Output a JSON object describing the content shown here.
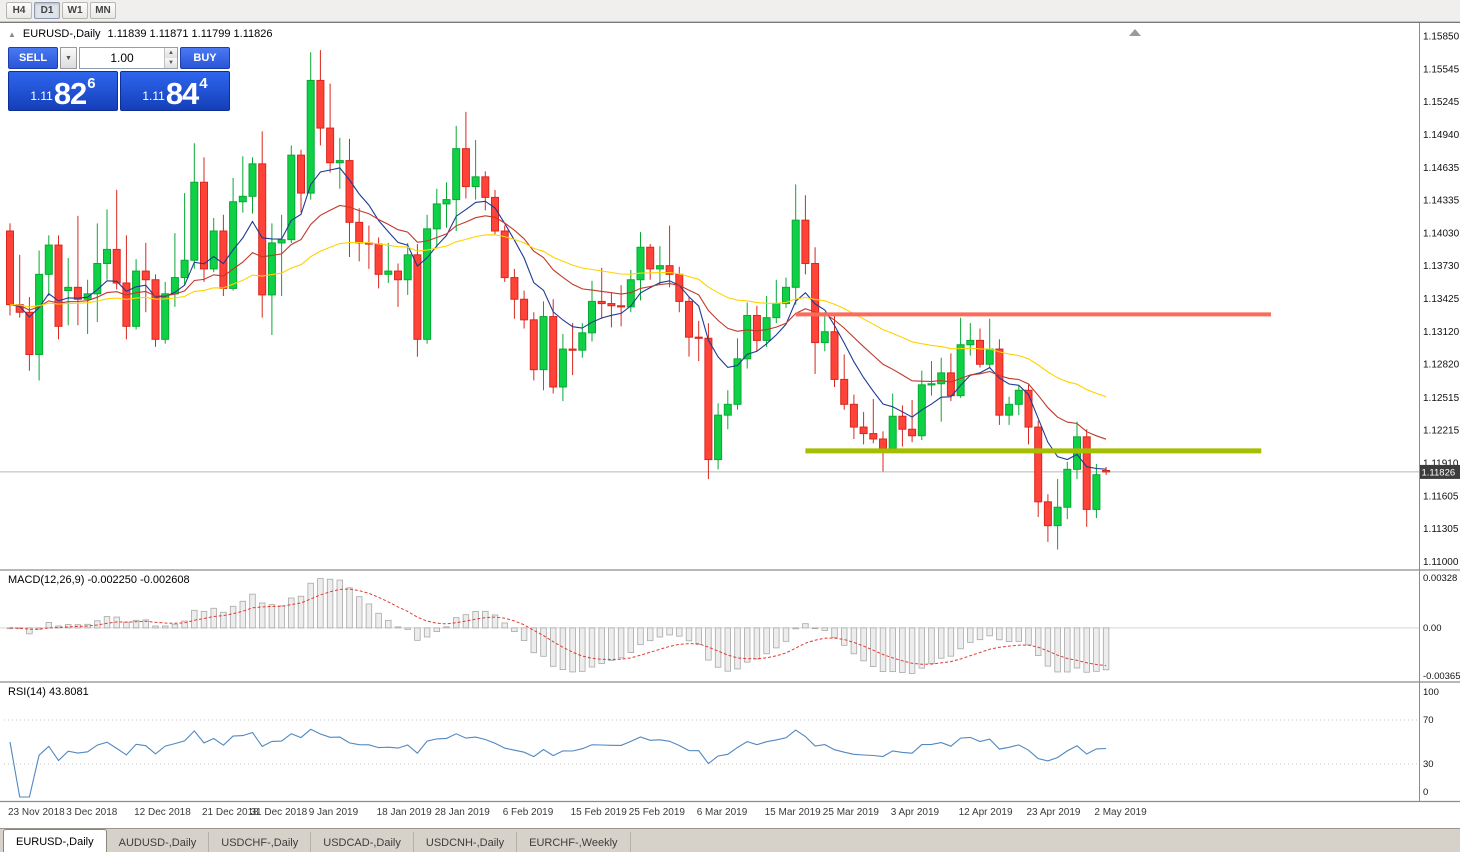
{
  "toolbar": {
    "buttons": [
      {
        "label": "H4",
        "active": false
      },
      {
        "label": "D1",
        "active": true
      },
      {
        "label": "W1",
        "active": false
      },
      {
        "label": "MN",
        "active": false
      }
    ]
  },
  "icons": {
    "collapse_panel": "▲",
    "volume_dropdown": "▼",
    "spin_up": "▲",
    "spin_down": "▼"
  },
  "chart": {
    "title": "EURUSD-,Daily",
    "ohlc": "1.11839 1.11871 1.11799 1.11826",
    "current_price": "1.11826",
    "price_scale": [
      "1.15850",
      "1.15545",
      "1.15245",
      "1.14940",
      "1.14635",
      "1.14335",
      "1.14030",
      "1.13730",
      "1.13425",
      "1.13120",
      "1.12820",
      "1.12515",
      "1.12215",
      "1.11910",
      "1.11605",
      "1.11305",
      "1.11000"
    ]
  },
  "trade_panel": {
    "sell_label": "SELL",
    "buy_label": "BUY",
    "volume": "1.00",
    "sell_price": {
      "prefix": "1.11",
      "big": "82",
      "sup": "6"
    },
    "buy_price": {
      "prefix": "1.11",
      "big": "84",
      "sup": "4"
    }
  },
  "macd": {
    "label": "MACD(12,26,9)",
    "values": "-0.002250 -0.002608",
    "fast": 12,
    "slow": 26,
    "signal": 9,
    "scale_top": "0.00328",
    "scale_mid": "0.00",
    "scale_bottom": "-0.00365",
    "histogram_fill": "#ededed",
    "histogram_border": "#a8a8a8",
    "signal_color": "#e23b32"
  },
  "rsi": {
    "label": "RSI(14)",
    "value": "43.8081",
    "period": 14,
    "levels": [
      100,
      70,
      30,
      0
    ],
    "line_color": "#5188c0"
  },
  "tabs": {
    "items": [
      {
        "label": "EURUSD-,Daily",
        "active": true
      },
      {
        "label": "AUDUSD-,Daily",
        "active": false
      },
      {
        "label": "USDCHF-,Daily",
        "active": false
      },
      {
        "label": "USDCAD-,Daily",
        "active": false
      },
      {
        "label": "USDCNH-,Daily",
        "active": false
      },
      {
        "label": "EURCHF-,Weekly",
        "active": false
      }
    ]
  },
  "chart_data": {
    "type": "candlestick",
    "symbol": "EURUSD-",
    "timeframe": "Daily",
    "bid": 1.11826,
    "colors": {
      "bull": "#0ed145",
      "bull_border": "#09a835",
      "bear": "#ff4338",
      "bear_border": "#d8271e",
      "bid_line": "#b8b8b8",
      "badge_bg": "#3c3c3c"
    },
    "moving_averages": [
      {
        "name": "fast-ma-line",
        "period": 8,
        "color": "#1f3a93"
      },
      {
        "name": "mid-ma-line",
        "period": 20,
        "color": "#c0392b"
      },
      {
        "name": "slow-ma-line",
        "period": 45,
        "color": "#ffd200"
      }
    ],
    "hlines": [
      {
        "name": "resistance-line",
        "price": 1.1328,
        "color": "#fb6a5a",
        "width": 4,
        "from_index": 81,
        "to_index": 130
      },
      {
        "name": "support-line",
        "price": 1.1202,
        "color": "#a6be00",
        "width": 5,
        "from_index": 82,
        "to_index": 129
      }
    ],
    "date_labels": [
      {
        "label": "23 Nov 2018",
        "index": 0
      },
      {
        "label": "3 Dec 2018",
        "index": 6
      },
      {
        "label": "12 Dec 2018",
        "index": 13
      },
      {
        "label": "21 Dec 2018",
        "index": 20
      },
      {
        "label": "31 Dec 2018",
        "index": 25
      },
      {
        "label": "9 Jan 2019",
        "index": 31
      },
      {
        "label": "18 Jan 2019",
        "index": 38
      },
      {
        "label": "28 Jan 2019",
        "index": 44
      },
      {
        "label": "6 Feb 2019",
        "index": 51
      },
      {
        "label": "15 Feb 2019",
        "index": 58
      },
      {
        "label": "25 Feb 2019",
        "index": 64
      },
      {
        "label": "6 Mar 2019",
        "index": 71
      },
      {
        "label": "15 Mar 2019",
        "index": 78
      },
      {
        "label": "25 Mar 2019",
        "index": 84
      },
      {
        "label": "3 Apr 2019",
        "index": 91
      },
      {
        "label": "12 Apr 2019",
        "index": 98
      },
      {
        "label": "23 Apr 2019",
        "index": 105
      },
      {
        "label": "2 May 2019",
        "index": 112
      }
    ],
    "candles": [
      [
        1.1405,
        1.1412,
        1.1327,
        1.1337
      ],
      [
        1.1337,
        1.1383,
        1.1325,
        1.133
      ],
      [
        1.133,
        1.1344,
        1.1276,
        1.1291
      ],
      [
        1.1291,
        1.1387,
        1.1267,
        1.1365
      ],
      [
        1.1365,
        1.1401,
        1.1345,
        1.1392
      ],
      [
        1.1392,
        1.1401,
        1.1305,
        1.1317
      ],
      [
        1.135,
        1.138,
        1.1318,
        1.1353
      ],
      [
        1.1353,
        1.1419,
        1.1318,
        1.1342
      ],
      [
        1.1342,
        1.136,
        1.131,
        1.1347
      ],
      [
        1.1347,
        1.1412,
        1.1321,
        1.1375
      ],
      [
        1.1375,
        1.1425,
        1.136,
        1.1388
      ],
      [
        1.1388,
        1.1443,
        1.1351,
        1.1357
      ],
      [
        1.1357,
        1.1401,
        1.1305,
        1.1317
      ],
      [
        1.1317,
        1.1379,
        1.1314,
        1.1368
      ],
      [
        1.1368,
        1.1394,
        1.133,
        1.136
      ],
      [
        1.136,
        1.1365,
        1.1298,
        1.1305
      ],
      [
        1.1305,
        1.1358,
        1.1301,
        1.1347
      ],
      [
        1.1347,
        1.1403,
        1.1335,
        1.1362
      ],
      [
        1.1362,
        1.144,
        1.1355,
        1.1378
      ],
      [
        1.1378,
        1.1486,
        1.137,
        1.145
      ],
      [
        1.145,
        1.1473,
        1.1358,
        1.137
      ],
      [
        1.137,
        1.1417,
        1.1367,
        1.1405
      ],
      [
        1.1405,
        1.142,
        1.1345,
        1.1352
      ],
      [
        1.1352,
        1.1454,
        1.135,
        1.1432
      ],
      [
        1.1432,
        1.1474,
        1.1422,
        1.1437
      ],
      [
        1.1437,
        1.1473,
        1.1421,
        1.1467
      ],
      [
        1.1467,
        1.1497,
        1.1325,
        1.1346
      ],
      [
        1.1346,
        1.1412,
        1.1309,
        1.1394
      ],
      [
        1.1394,
        1.142,
        1.1345,
        1.1397
      ],
      [
        1.1397,
        1.1484,
        1.1394,
        1.1475
      ],
      [
        1.1475,
        1.148,
        1.1422,
        1.144
      ],
      [
        1.144,
        1.157,
        1.1434,
        1.1544
      ],
      [
        1.1544,
        1.1572,
        1.1484,
        1.15
      ],
      [
        1.15,
        1.1541,
        1.1459,
        1.1468
      ],
      [
        1.1468,
        1.1491,
        1.1444,
        1.147
      ],
      [
        1.147,
        1.149,
        1.1381,
        1.1413
      ],
      [
        1.1413,
        1.1426,
        1.1377,
        1.1394
      ],
      [
        1.1394,
        1.141,
        1.137,
        1.1393
      ],
      [
        1.1393,
        1.1399,
        1.1352,
        1.1365
      ],
      [
        1.1365,
        1.1394,
        1.1357,
        1.1368
      ],
      [
        1.1368,
        1.1375,
        1.1335,
        1.136
      ],
      [
        1.136,
        1.1394,
        1.1346,
        1.1383
      ],
      [
        1.1383,
        1.1393,
        1.1289,
        1.1305
      ],
      [
        1.1305,
        1.142,
        1.1301,
        1.1407
      ],
      [
        1.1407,
        1.1444,
        1.139,
        1.143
      ],
      [
        1.143,
        1.145,
        1.1408,
        1.1434
      ],
      [
        1.1434,
        1.1502,
        1.1405,
        1.1481
      ],
      [
        1.1481,
        1.1515,
        1.1435,
        1.1446
      ],
      [
        1.1446,
        1.1489,
        1.1434,
        1.1455
      ],
      [
        1.1455,
        1.146,
        1.1424,
        1.1436
      ],
      [
        1.1436,
        1.1443,
        1.1402,
        1.1405
      ],
      [
        1.1405,
        1.141,
        1.1358,
        1.1362
      ],
      [
        1.1362,
        1.137,
        1.1324,
        1.1342
      ],
      [
        1.1342,
        1.135,
        1.1315,
        1.1323
      ],
      [
        1.1323,
        1.133,
        1.1267,
        1.1277
      ],
      [
        1.1277,
        1.134,
        1.1258,
        1.1326
      ],
      [
        1.1326,
        1.1342,
        1.1255,
        1.1261
      ],
      [
        1.1261,
        1.131,
        1.1248,
        1.1296
      ],
      [
        1.1296,
        1.132,
        1.1272,
        1.1295
      ],
      [
        1.1295,
        1.132,
        1.1288,
        1.1311
      ],
      [
        1.1311,
        1.1359,
        1.1303,
        1.134
      ],
      [
        1.134,
        1.1371,
        1.1324,
        1.1338
      ],
      [
        1.1338,
        1.1348,
        1.1316,
        1.1336
      ],
      [
        1.1336,
        1.1355,
        1.1317,
        1.1335
      ],
      [
        1.1335,
        1.1369,
        1.133,
        1.136
      ],
      [
        1.136,
        1.1404,
        1.1341,
        1.139
      ],
      [
        1.139,
        1.1393,
        1.136,
        1.137
      ],
      [
        1.137,
        1.1391,
        1.1355,
        1.1373
      ],
      [
        1.1373,
        1.141,
        1.1353,
        1.1365
      ],
      [
        1.1365,
        1.1372,
        1.133,
        1.134
      ],
      [
        1.134,
        1.1344,
        1.1289,
        1.1307
      ],
      [
        1.1307,
        1.1322,
        1.1285,
        1.1306
      ],
      [
        1.1306,
        1.132,
        1.1176,
        1.1194
      ],
      [
        1.1194,
        1.1246,
        1.1185,
        1.1235
      ],
      [
        1.1235,
        1.1258,
        1.1222,
        1.1245
      ],
      [
        1.1245,
        1.1306,
        1.124,
        1.1287
      ],
      [
        1.1287,
        1.1339,
        1.1278,
        1.1327
      ],
      [
        1.1327,
        1.1336,
        1.1294,
        1.1304
      ],
      [
        1.1304,
        1.1345,
        1.1298,
        1.1325
      ],
      [
        1.1325,
        1.136,
        1.132,
        1.1338
      ],
      [
        1.1338,
        1.1362,
        1.1334,
        1.1353
      ],
      [
        1.1353,
        1.1448,
        1.1337,
        1.1415
      ],
      [
        1.1415,
        1.1438,
        1.1365,
        1.1375
      ],
      [
        1.1375,
        1.139,
        1.1273,
        1.1302
      ],
      [
        1.1302,
        1.133,
        1.1294,
        1.1312
      ],
      [
        1.1312,
        1.1327,
        1.1261,
        1.1268
      ],
      [
        1.1268,
        1.1291,
        1.124,
        1.1245
      ],
      [
        1.1245,
        1.1254,
        1.1213,
        1.1224
      ],
      [
        1.1224,
        1.1238,
        1.1208,
        1.1218
      ],
      [
        1.1218,
        1.125,
        1.1209,
        1.1213
      ],
      [
        1.1213,
        1.122,
        1.1183,
        1.1204
      ],
      [
        1.1204,
        1.1255,
        1.12,
        1.1234
      ],
      [
        1.1234,
        1.1244,
        1.1206,
        1.1222
      ],
      [
        1.1222,
        1.1249,
        1.121,
        1.1216
      ],
      [
        1.1216,
        1.1276,
        1.1212,
        1.1263
      ],
      [
        1.1263,
        1.1285,
        1.1253,
        1.1264
      ],
      [
        1.1264,
        1.1288,
        1.1229,
        1.1274
      ],
      [
        1.1274,
        1.1292,
        1.1248,
        1.1253
      ],
      [
        1.1253,
        1.1325,
        1.1251,
        1.13
      ],
      [
        1.13,
        1.132,
        1.129,
        1.1304
      ],
      [
        1.1304,
        1.1315,
        1.1279,
        1.1282
      ],
      [
        1.1282,
        1.1324,
        1.1278,
        1.1296
      ],
      [
        1.1296,
        1.1305,
        1.1226,
        1.1235
      ],
      [
        1.1235,
        1.1252,
        1.1226,
        1.1245
      ],
      [
        1.1245,
        1.1262,
        1.1235,
        1.1258
      ],
      [
        1.1258,
        1.1263,
        1.1208,
        1.1224
      ],
      [
        1.1224,
        1.123,
        1.1141,
        1.1155
      ],
      [
        1.1155,
        1.1162,
        1.1118,
        1.1133
      ],
      [
        1.1133,
        1.1176,
        1.1111,
        1.115
      ],
      [
        1.115,
        1.1192,
        1.1139,
        1.1185
      ],
      [
        1.1185,
        1.1229,
        1.1176,
        1.1215
      ],
      [
        1.1215,
        1.1222,
        1.1132,
        1.1148
      ],
      [
        1.1148,
        1.119,
        1.114,
        1.118
      ],
      [
        1.11839,
        1.11871,
        1.11799,
        1.11826
      ]
    ]
  }
}
